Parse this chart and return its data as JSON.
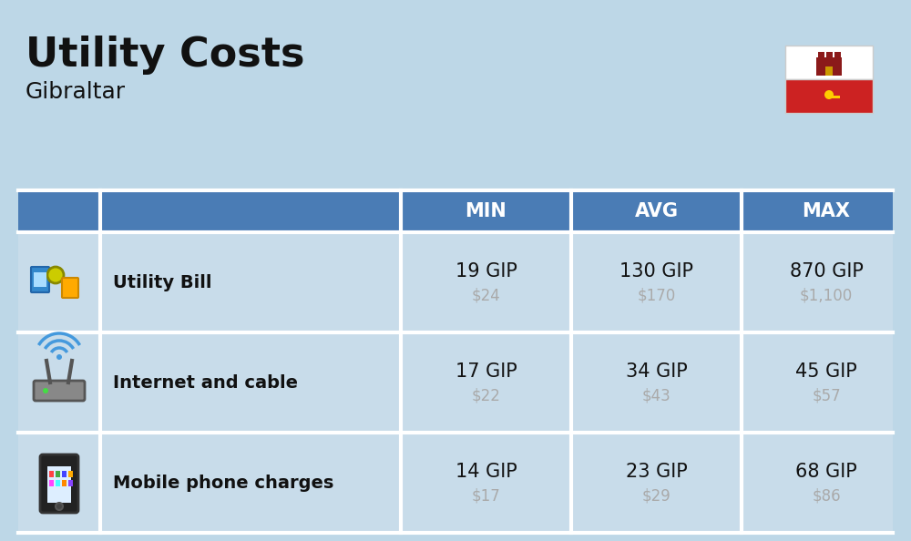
{
  "title": "Utility Costs",
  "subtitle": "Gibraltar",
  "background_color": "#bdd7e7",
  "header_bg_color": "#4a7cb5",
  "header_text_color": "#ffffff",
  "row_bg_color": "#c8dcea",
  "row_sep_color": "#ffffff",
  "primary_text_color": "#111111",
  "secondary_text_color": "#aaaaaa",
  "columns": [
    "MIN",
    "AVG",
    "MAX"
  ],
  "rows": [
    {
      "label": "Utility Bill",
      "min_gip": "19 GIP",
      "min_usd": "$24",
      "avg_gip": "130 GIP",
      "avg_usd": "$170",
      "max_gip": "870 GIP",
      "max_usd": "$1,100"
    },
    {
      "label": "Internet and cable",
      "min_gip": "17 GIP",
      "min_usd": "$22",
      "avg_gip": "34 GIP",
      "avg_usd": "$43",
      "max_gip": "45 GIP",
      "max_usd": "$57"
    },
    {
      "label": "Mobile phone charges",
      "min_gip": "14 GIP",
      "min_usd": "$17",
      "avg_gip": "23 GIP",
      "avg_usd": "$29",
      "max_gip": "68 GIP",
      "max_usd": "$86"
    }
  ]
}
